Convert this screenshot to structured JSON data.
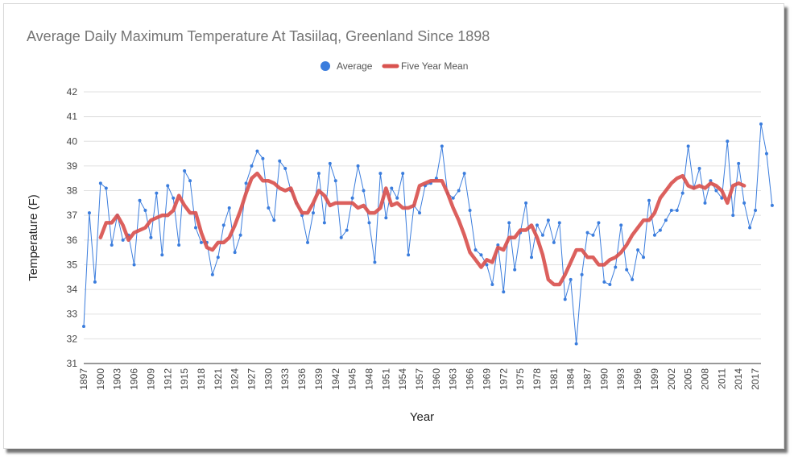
{
  "colors": {
    "average": "#3b7ddd",
    "five_year_mean": "#d9534f",
    "grid": "#e0e0e0",
    "title": "#757575"
  },
  "chart_data": {
    "type": "line",
    "title": "Average Daily Maximum Temperature At Tasiilaq, Greenland Since 1898",
    "xlabel": "Year",
    "ylabel": "Temperature (F)",
    "ylim": [
      31,
      42
    ],
    "yticks": [
      "31",
      "32",
      "33",
      "34",
      "35",
      "36",
      "37",
      "38",
      "39",
      "40",
      "41",
      "42"
    ],
    "xtick_labels": [
      "1897",
      "1900",
      "1903",
      "1906",
      "1909",
      "1912",
      "1915",
      "1918",
      "1921",
      "1924",
      "1927",
      "1930",
      "1933",
      "1936",
      "1939",
      "1942",
      "1945",
      "1948",
      "1951",
      "1954",
      "1957",
      "1960",
      "1963",
      "1966",
      "1969",
      "1972",
      "1975",
      "1978",
      "1981",
      "1984",
      "1987",
      "1990",
      "1993",
      "1996",
      "1999",
      "2002",
      "2005",
      "2008",
      "2011",
      "2014",
      "2017"
    ],
    "grid": true,
    "legend_position": "top-center",
    "series": [
      {
        "name": "Average",
        "start_year": 1897,
        "values": [
          32.5,
          37.1,
          34.3,
          38.3,
          38.1,
          35.8,
          37.0,
          36.0,
          36.2,
          35.0,
          37.6,
          37.2,
          36.1,
          37.9,
          35.4,
          38.2,
          37.7,
          35.8,
          38.8,
          38.4,
          36.5,
          35.9,
          35.9,
          34.6,
          35.3,
          36.6,
          37.3,
          35.5,
          36.2,
          38.3,
          39.0,
          39.6,
          39.3,
          37.3,
          36.8,
          39.2,
          38.9,
          38.0,
          37.5,
          37.0,
          35.9,
          37.1,
          38.7,
          36.7,
          39.1,
          38.4,
          36.1,
          36.4,
          37.7,
          39.0,
          38.0,
          36.7,
          35.1,
          38.7,
          36.9,
          38.1,
          37.7,
          38.7,
          35.4,
          37.4,
          37.1,
          38.2,
          38.3,
          38.5,
          39.8,
          37.9,
          37.7,
          38.0,
          38.7,
          37.2,
          35.6,
          35.4,
          35.0,
          34.2,
          35.8,
          33.9,
          36.7,
          34.8,
          36.3,
          37.5,
          35.3,
          36.6,
          36.2,
          36.8,
          35.9,
          36.7,
          33.6,
          34.4,
          31.8,
          34.6,
          36.3,
          36.2,
          36.7,
          34.3,
          34.2,
          34.9,
          36.6,
          34.8,
          34.4,
          35.6,
          35.3,
          37.6,
          36.2,
          36.4,
          36.8,
          37.2,
          37.2,
          37.9,
          39.8,
          38.1,
          38.9,
          37.5,
          38.4,
          38.0,
          37.7,
          40.0,
          37.0,
          39.1,
          37.5,
          36.5,
          37.2,
          40.7,
          39.5,
          37.4
        ]
      },
      {
        "name": "Five Year Mean",
        "start_year": 1900,
        "values": [
          36.1,
          36.7,
          36.7,
          37.0,
          36.6,
          36.0,
          36.3,
          36.4,
          36.5,
          36.8,
          36.9,
          37.0,
          37.0,
          37.2,
          37.8,
          37.4,
          37.1,
          37.1,
          36.3,
          35.7,
          35.6,
          35.9,
          35.9,
          36.1,
          36.6,
          37.2,
          37.9,
          38.5,
          38.7,
          38.4,
          38.4,
          38.3,
          38.1,
          38.0,
          38.1,
          37.5,
          37.1,
          37.1,
          37.5,
          38.0,
          37.8,
          37.4,
          37.5,
          37.5,
          37.5,
          37.5,
          37.3,
          37.4,
          37.1,
          37.1,
          37.3,
          38.1,
          37.4,
          37.5,
          37.3,
          37.3,
          37.4,
          38.2,
          38.3,
          38.4,
          38.4,
          38.4,
          37.9,
          37.3,
          36.8,
          36.2,
          35.5,
          35.2,
          34.9,
          35.2,
          35.1,
          35.7,
          35.6,
          36.1,
          36.1,
          36.4,
          36.4,
          36.6,
          36.1,
          35.4,
          34.4,
          34.2,
          34.2,
          34.6,
          35.1,
          35.6,
          35.6,
          35.3,
          35.3,
          35.0,
          35.0,
          35.2,
          35.3,
          35.5,
          35.8,
          36.2,
          36.5,
          36.8,
          36.8,
          37.1,
          37.7,
          38.0,
          38.3,
          38.5,
          38.6,
          38.2,
          38.1,
          38.2,
          38.1,
          38.3,
          38.2,
          38.0,
          37.5,
          38.2,
          38.3,
          38.2
        ]
      }
    ]
  }
}
